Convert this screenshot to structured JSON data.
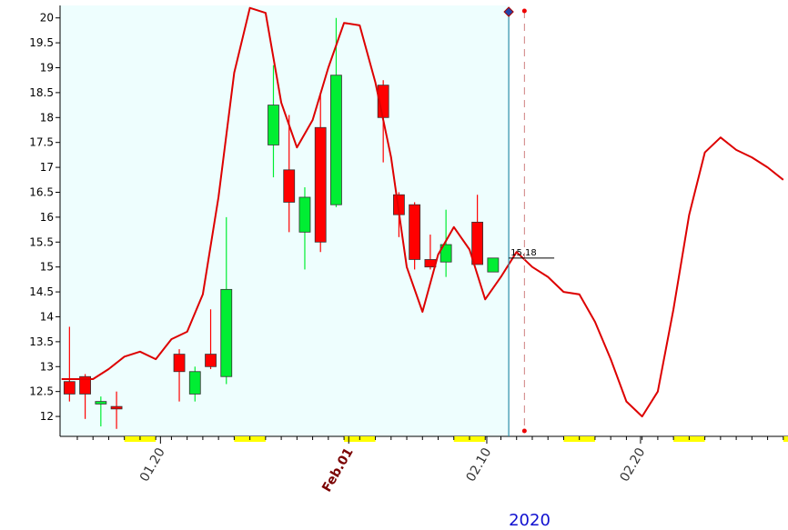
{
  "chart_data": {
    "type": "candlestick",
    "ylim": [
      11.6,
      20.25
    ],
    "yticks": [
      12,
      12.5,
      13,
      13.5,
      14,
      14.5,
      15,
      15.5,
      16,
      16.5,
      17,
      17.5,
      18,
      18.5,
      19,
      19.5,
      20
    ],
    "ytick_labels": [
      "12",
      "12.5",
      "13",
      "13.5",
      "14",
      "14.5",
      "15",
      "15.5",
      "16",
      "16.5",
      "17",
      "17.5",
      "18",
      "18.5",
      "19",
      "19.5",
      "20"
    ],
    "x_index_range": [
      -0.6,
      45.8
    ],
    "xticks": [
      {
        "label": "01.20",
        "index": 5.8,
        "bold": false
      },
      {
        "label": "Feb.01",
        "index": 17.8,
        "bold": true
      },
      {
        "label": "02.10",
        "index": 26.6,
        "bold": false
      },
      {
        "label": "02.20",
        "index": 36.4,
        "bold": false
      }
    ],
    "year_label": "2020",
    "last_price_label": "15.18",
    "last_price": 15.18,
    "shaded_until_index": 28.0,
    "forecast_marker_index": 29.0,
    "candles": [
      {
        "i": 0,
        "o": 12.7,
        "h": 13.8,
        "l": 12.3,
        "c": 12.45
      },
      {
        "i": 1,
        "o": 12.8,
        "h": 12.85,
        "l": 11.95,
        "c": 12.45
      },
      {
        "i": 2,
        "o": 12.25,
        "h": 12.4,
        "l": 11.8,
        "c": 12.3
      },
      {
        "i": 3,
        "o": 12.2,
        "h": 12.5,
        "l": 11.75,
        "c": 12.15
      },
      {
        "i": 7,
        "o": 13.25,
        "h": 13.35,
        "l": 12.3,
        "c": 12.9
      },
      {
        "i": 8,
        "o": 12.45,
        "h": 13.0,
        "l": 12.3,
        "c": 12.9
      },
      {
        "i": 9,
        "o": 13.25,
        "h": 14.15,
        "l": 12.95,
        "c": 13.0
      },
      {
        "i": 10,
        "o": 12.8,
        "h": 16.0,
        "l": 12.65,
        "c": 14.55
      },
      {
        "i": 13,
        "o": 17.45,
        "h": 19.05,
        "l": 16.8,
        "c": 18.25
      },
      {
        "i": 14,
        "o": 16.95,
        "h": 18.05,
        "l": 15.7,
        "c": 16.3
      },
      {
        "i": 15,
        "o": 15.7,
        "h": 16.6,
        "l": 14.95,
        "c": 16.4
      },
      {
        "i": 16,
        "o": 17.8,
        "h": 18.45,
        "l": 15.3,
        "c": 15.5
      },
      {
        "i": 17,
        "o": 16.25,
        "h": 20.0,
        "l": 16.2,
        "c": 18.85
      },
      {
        "i": 20,
        "o": 18.65,
        "h": 18.75,
        "l": 17.1,
        "c": 18.0
      },
      {
        "i": 21,
        "o": 16.45,
        "h": 16.5,
        "l": 15.6,
        "c": 16.05
      },
      {
        "i": 22,
        "o": 16.25,
        "h": 16.3,
        "l": 14.95,
        "c": 15.15
      },
      {
        "i": 23,
        "o": 15.15,
        "h": 15.65,
        "l": 14.95,
        "c": 15.0
      },
      {
        "i": 24,
        "o": 15.1,
        "h": 16.15,
        "l": 14.8,
        "c": 15.45
      },
      {
        "i": 26,
        "o": 15.9,
        "h": 16.45,
        "l": 15.05,
        "c": 15.05
      },
      {
        "i": 27,
        "o": 14.9,
        "h": 15.18,
        "l": 14.9,
        "c": 15.18
      }
    ],
    "forecast_line": [
      [
        -0.5,
        12.75
      ],
      [
        1.5,
        12.75
      ],
      [
        2.5,
        12.95
      ],
      [
        3.5,
        13.2
      ],
      [
        4.5,
        13.3
      ],
      [
        5.5,
        13.15
      ],
      [
        6.5,
        13.55
      ],
      [
        7.5,
        13.7
      ],
      [
        8.5,
        14.45
      ],
      [
        9.5,
        16.4
      ],
      [
        10.5,
        18.9
      ],
      [
        11.5,
        20.2
      ],
      [
        12.5,
        20.1
      ],
      [
        13.5,
        18.3
      ],
      [
        14.5,
        17.4
      ],
      [
        15.5,
        17.95
      ],
      [
        16.5,
        19.0
      ],
      [
        17.5,
        19.9
      ],
      [
        18.5,
        19.85
      ],
      [
        19.5,
        18.7
      ],
      [
        20.5,
        17.2
      ],
      [
        21.5,
        15.0
      ],
      [
        22.5,
        14.1
      ],
      [
        23.5,
        15.25
      ],
      [
        24.5,
        15.8
      ],
      [
        25.5,
        15.35
      ],
      [
        26.5,
        14.35
      ],
      [
        27.5,
        14.8
      ],
      [
        28.5,
        15.3
      ],
      [
        29.5,
        15.0
      ],
      [
        30.5,
        14.8
      ],
      [
        31.5,
        14.5
      ],
      [
        32.5,
        14.45
      ],
      [
        33.5,
        13.9
      ],
      [
        34.5,
        13.15
      ],
      [
        35.5,
        12.3
      ],
      [
        36.5,
        12.0
      ],
      [
        37.5,
        12.5
      ],
      [
        38.5,
        14.15
      ],
      [
        39.5,
        16.05
      ],
      [
        40.5,
        17.3
      ],
      [
        41.5,
        17.6
      ],
      [
        42.5,
        17.35
      ],
      [
        43.5,
        17.2
      ],
      [
        44.5,
        17.0
      ],
      [
        45.5,
        16.75
      ]
    ],
    "weekend_marks": [
      [
        3.5,
        5.5
      ],
      [
        10.5,
        12.5
      ],
      [
        17.5,
        19.5
      ],
      [
        24.5,
        26.5
      ],
      [
        31.5,
        33.5
      ],
      [
        38.5,
        40.5
      ],
      [
        45.5,
        46.0
      ]
    ],
    "colors": {
      "shade": "#eefefe",
      "up": "#00ee33",
      "down": "#ff0000",
      "line": "#dd0000",
      "weekend": "#ffff00",
      "cursor": "#2a8fa8",
      "marker_diamond": "#2244aa",
      "year": "#1010d0"
    }
  }
}
